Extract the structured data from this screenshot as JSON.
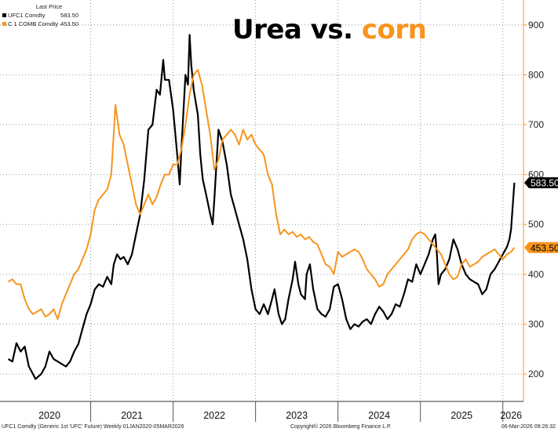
{
  "title": {
    "part1": "Urea vs.",
    "part2": "corn"
  },
  "legend": {
    "header": "Last Price",
    "items": [
      {
        "name": "UFC1 Comdty",
        "value": "583.50",
        "color": "#000000"
      },
      {
        "name": "C 1 COMB Comdty",
        "value": "453.50",
        "color": "#f7941d"
      }
    ]
  },
  "footer": {
    "left": "UFC1 Comdty (Generic 1st 'UFC' Future) Weekly 01JAN2020-05MAR2026",
    "center": "Copyright© 2026 Bloomberg Finance L.P.",
    "right": "06-Mar-2026 09:26:32"
  },
  "chart_data": {
    "type": "line",
    "ylim": [
      145,
      950
    ],
    "yticks": [
      200,
      300,
      400,
      500,
      600,
      700,
      800,
      900
    ],
    "ytick_labels": [
      "200",
      "300",
      "400",
      "500",
      "600",
      "700",
      "800",
      "900"
    ],
    "xlim": [
      2019.9,
      2026.25
    ],
    "x_labels": [
      {
        "label": "2020",
        "x": 2020.5
      },
      {
        "label": "2021",
        "x": 2021.5
      },
      {
        "label": "2022",
        "x": 2022.5
      },
      {
        "label": "2023",
        "x": 2023.5
      },
      {
        "label": "2024",
        "x": 2024.5
      },
      {
        "label": "2025",
        "x": 2025.5
      },
      {
        "label": "2026",
        "x": 2026.1
      }
    ],
    "year_boundaries": [
      2021,
      2022,
      2023,
      2024,
      2025,
      2026
    ],
    "grid": true,
    "legend_position": "top-left",
    "series": [
      {
        "name": "UFC1 Comdty",
        "color": "#000000",
        "last_value": "583.50",
        "points": [
          [
            2020.0,
            230
          ],
          [
            2020.05,
            225
          ],
          [
            2020.1,
            262
          ],
          [
            2020.15,
            245
          ],
          [
            2020.2,
            255
          ],
          [
            2020.25,
            215
          ],
          [
            2020.3,
            200
          ],
          [
            2020.33,
            190
          ],
          [
            2020.4,
            200
          ],
          [
            2020.45,
            215
          ],
          [
            2020.5,
            245
          ],
          [
            2020.55,
            230
          ],
          [
            2020.6,
            225
          ],
          [
            2020.65,
            220
          ],
          [
            2020.7,
            215
          ],
          [
            2020.75,
            225
          ],
          [
            2020.8,
            245
          ],
          [
            2020.85,
            260
          ],
          [
            2020.9,
            290
          ],
          [
            2020.95,
            320
          ],
          [
            2021.0,
            340
          ],
          [
            2021.05,
            370
          ],
          [
            2021.1,
            380
          ],
          [
            2021.15,
            375
          ],
          [
            2021.2,
            395
          ],
          [
            2021.25,
            380
          ],
          [
            2021.28,
            420
          ],
          [
            2021.32,
            440
          ],
          [
            2021.36,
            430
          ],
          [
            2021.4,
            435
          ],
          [
            2021.45,
            420
          ],
          [
            2021.5,
            440
          ],
          [
            2021.55,
            480
          ],
          [
            2021.6,
            520
          ],
          [
            2021.65,
            590
          ],
          [
            2021.7,
            690
          ],
          [
            2021.75,
            700
          ],
          [
            2021.8,
            770
          ],
          [
            2021.84,
            760
          ],
          [
            2021.88,
            830
          ],
          [
            2021.9,
            790
          ],
          [
            2021.95,
            790
          ],
          [
            2022.0,
            730
          ],
          [
            2022.05,
            640
          ],
          [
            2022.08,
            580
          ],
          [
            2022.1,
            650
          ],
          [
            2022.15,
            800
          ],
          [
            2022.18,
            780
          ],
          [
            2022.2,
            880
          ],
          [
            2022.22,
            820
          ],
          [
            2022.25,
            770
          ],
          [
            2022.3,
            720
          ],
          [
            2022.33,
            640
          ],
          [
            2022.36,
            590
          ],
          [
            2022.4,
            560
          ],
          [
            2022.45,
            520
          ],
          [
            2022.48,
            500
          ],
          [
            2022.5,
            550
          ],
          [
            2022.55,
            690
          ],
          [
            2022.6,
            665
          ],
          [
            2022.65,
            620
          ],
          [
            2022.7,
            560
          ],
          [
            2022.75,
            530
          ],
          [
            2022.8,
            500
          ],
          [
            2022.85,
            470
          ],
          [
            2022.9,
            430
          ],
          [
            2022.95,
            370
          ],
          [
            2023.0,
            330
          ],
          [
            2023.05,
            320
          ],
          [
            2023.1,
            340
          ],
          [
            2023.15,
            320
          ],
          [
            2023.2,
            350
          ],
          [
            2023.23,
            370
          ],
          [
            2023.28,
            320
          ],
          [
            2023.32,
            300
          ],
          [
            2023.36,
            310
          ],
          [
            2023.4,
            350
          ],
          [
            2023.45,
            390
          ],
          [
            2023.48,
            425
          ],
          [
            2023.52,
            380
          ],
          [
            2023.55,
            360
          ],
          [
            2023.6,
            350
          ],
          [
            2023.62,
            400
          ],
          [
            2023.66,
            420
          ],
          [
            2023.7,
            370
          ],
          [
            2023.75,
            330
          ],
          [
            2023.8,
            320
          ],
          [
            2023.85,
            315
          ],
          [
            2023.9,
            330
          ],
          [
            2023.95,
            375
          ],
          [
            2024.0,
            380
          ],
          [
            2024.05,
            350
          ],
          [
            2024.1,
            310
          ],
          [
            2024.15,
            290
          ],
          [
            2024.2,
            300
          ],
          [
            2024.25,
            295
          ],
          [
            2024.3,
            305
          ],
          [
            2024.35,
            310
          ],
          [
            2024.4,
            300
          ],
          [
            2024.45,
            320
          ],
          [
            2024.5,
            335
          ],
          [
            2024.55,
            325
          ],
          [
            2024.6,
            310
          ],
          [
            2024.65,
            320
          ],
          [
            2024.7,
            340
          ],
          [
            2024.75,
            335
          ],
          [
            2024.8,
            360
          ],
          [
            2024.85,
            390
          ],
          [
            2024.9,
            385
          ],
          [
            2024.95,
            420
          ],
          [
            2025.0,
            400
          ],
          [
            2025.05,
            420
          ],
          [
            2025.1,
            440
          ],
          [
            2025.15,
            470
          ],
          [
            2025.18,
            480
          ],
          [
            2025.2,
            440
          ],
          [
            2025.22,
            380
          ],
          [
            2025.25,
            400
          ],
          [
            2025.3,
            410
          ],
          [
            2025.35,
            430
          ],
          [
            2025.4,
            470
          ],
          [
            2025.45,
            450
          ],
          [
            2025.5,
            420
          ],
          [
            2025.55,
            400
          ],
          [
            2025.6,
            390
          ],
          [
            2025.65,
            385
          ],
          [
            2025.7,
            380
          ],
          [
            2025.75,
            360
          ],
          [
            2025.8,
            370
          ],
          [
            2025.85,
            400
          ],
          [
            2025.9,
            410
          ],
          [
            2025.95,
            425
          ],
          [
            2026.0,
            440
          ],
          [
            2026.05,
            455
          ],
          [
            2026.08,
            470
          ],
          [
            2026.1,
            490
          ],
          [
            2026.14,
            583.5
          ]
        ]
      },
      {
        "name": "C 1 COMB Comdty",
        "color": "#f7941d",
        "last_value": "453.50",
        "points": [
          [
            2020.0,
            385
          ],
          [
            2020.05,
            390
          ],
          [
            2020.1,
            380
          ],
          [
            2020.15,
            380
          ],
          [
            2020.2,
            350
          ],
          [
            2020.25,
            330
          ],
          [
            2020.3,
            320
          ],
          [
            2020.35,
            325
          ],
          [
            2020.4,
            330
          ],
          [
            2020.45,
            315
          ],
          [
            2020.5,
            320
          ],
          [
            2020.55,
            330
          ],
          [
            2020.6,
            310
          ],
          [
            2020.65,
            340
          ],
          [
            2020.7,
            360
          ],
          [
            2020.75,
            380
          ],
          [
            2020.8,
            400
          ],
          [
            2020.85,
            410
          ],
          [
            2020.9,
            430
          ],
          [
            2020.95,
            450
          ],
          [
            2021.0,
            480
          ],
          [
            2021.05,
            530
          ],
          [
            2021.1,
            550
          ],
          [
            2021.15,
            560
          ],
          [
            2021.2,
            570
          ],
          [
            2021.25,
            600
          ],
          [
            2021.3,
            740
          ],
          [
            2021.35,
            680
          ],
          [
            2021.4,
            660
          ],
          [
            2021.45,
            620
          ],
          [
            2021.5,
            580
          ],
          [
            2021.55,
            540
          ],
          [
            2021.6,
            520
          ],
          [
            2021.65,
            540
          ],
          [
            2021.7,
            560
          ],
          [
            2021.75,
            540
          ],
          [
            2021.8,
            555
          ],
          [
            2021.85,
            580
          ],
          [
            2021.9,
            600
          ],
          [
            2021.95,
            600
          ],
          [
            2022.0,
            620
          ],
          [
            2022.05,
            620
          ],
          [
            2022.1,
            650
          ],
          [
            2022.15,
            700
          ],
          [
            2022.2,
            760
          ],
          [
            2022.25,
            800
          ],
          [
            2022.3,
            810
          ],
          [
            2022.35,
            780
          ],
          [
            2022.4,
            730
          ],
          [
            2022.45,
            680
          ],
          [
            2022.5,
            610
          ],
          [
            2022.55,
            630
          ],
          [
            2022.6,
            670
          ],
          [
            2022.65,
            680
          ],
          [
            2022.7,
            690
          ],
          [
            2022.75,
            680
          ],
          [
            2022.8,
            660
          ],
          [
            2022.85,
            690
          ],
          [
            2022.9,
            670
          ],
          [
            2022.95,
            680
          ],
          [
            2023.0,
            660
          ],
          [
            2023.05,
            650
          ],
          [
            2023.1,
            640
          ],
          [
            2023.15,
            600
          ],
          [
            2023.2,
            580
          ],
          [
            2023.25,
            520
          ],
          [
            2023.3,
            480
          ],
          [
            2023.35,
            490
          ],
          [
            2023.4,
            480
          ],
          [
            2023.45,
            485
          ],
          [
            2023.5,
            475
          ],
          [
            2023.55,
            480
          ],
          [
            2023.6,
            470
          ],
          [
            2023.65,
            475
          ],
          [
            2023.7,
            465
          ],
          [
            2023.75,
            460
          ],
          [
            2023.8,
            440
          ],
          [
            2023.85,
            420
          ],
          [
            2023.9,
            415
          ],
          [
            2023.95,
            400
          ],
          [
            2024.0,
            445
          ],
          [
            2024.05,
            435
          ],
          [
            2024.1,
            440
          ],
          [
            2024.15,
            445
          ],
          [
            2024.2,
            450
          ],
          [
            2024.25,
            445
          ],
          [
            2024.3,
            430
          ],
          [
            2024.35,
            410
          ],
          [
            2024.4,
            400
          ],
          [
            2024.45,
            390
          ],
          [
            2024.5,
            375
          ],
          [
            2024.55,
            380
          ],
          [
            2024.6,
            400
          ],
          [
            2024.65,
            410
          ],
          [
            2024.7,
            420
          ],
          [
            2024.75,
            430
          ],
          [
            2024.8,
            440
          ],
          [
            2024.85,
            450
          ],
          [
            2024.9,
            470
          ],
          [
            2024.95,
            480
          ],
          [
            2025.0,
            485
          ],
          [
            2025.05,
            480
          ],
          [
            2025.1,
            470
          ],
          [
            2025.15,
            460
          ],
          [
            2025.2,
            450
          ],
          [
            2025.25,
            440
          ],
          [
            2025.3,
            420
          ],
          [
            2025.35,
            400
          ],
          [
            2025.4,
            390
          ],
          [
            2025.45,
            395
          ],
          [
            2025.5,
            420
          ],
          [
            2025.55,
            430
          ],
          [
            2025.6,
            415
          ],
          [
            2025.65,
            420
          ],
          [
            2025.7,
            425
          ],
          [
            2025.75,
            435
          ],
          [
            2025.8,
            440
          ],
          [
            2025.85,
            445
          ],
          [
            2025.9,
            450
          ],
          [
            2025.95,
            440
          ],
          [
            2026.0,
            430
          ],
          [
            2026.05,
            440
          ],
          [
            2026.1,
            445
          ],
          [
            2026.14,
            453.5
          ]
        ]
      }
    ]
  }
}
